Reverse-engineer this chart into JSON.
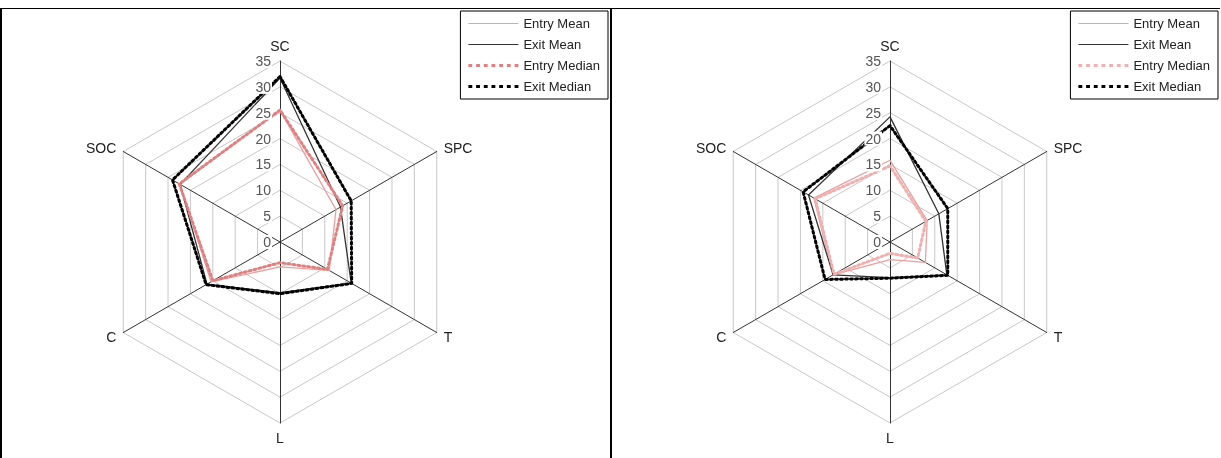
{
  "chart_data": [
    {
      "type": "radar",
      "categories": [
        "SC",
        "SPC",
        "T",
        "L",
        "C",
        "SOC"
      ],
      "ylim": [
        0,
        35
      ],
      "yticks": [
        0,
        5,
        10,
        15,
        20,
        25,
        30,
        35
      ],
      "legend": "top right",
      "marker": "none",
      "grid": true,
      "series": [
        {
          "name": "Entry Mean",
          "color": "#e8a0a0",
          "line_style": "solid",
          "values": [
            25.5,
            12.5,
            11,
            4.8,
            15.4,
            22.3
          ]
        },
        {
          "name": "Exit Mean",
          "color": "#333333",
          "line_style": "solid",
          "values": [
            31.7,
            13.5,
            15.9,
            9.8,
            16.3,
            22.3
          ]
        },
        {
          "name": "Entry Median",
          "color": "#e08080",
          "line_style": "dotted",
          "values": [
            25.5,
            14,
            10.6,
            4,
            15,
            22.5
          ]
        },
        {
          "name": "Exit Median",
          "color": "#000000",
          "line_style": "dotted",
          "values": [
            32,
            15.9,
            16,
            10,
            16.5,
            24
          ]
        }
      ]
    },
    {
      "type": "radar",
      "categories": [
        "SC",
        "SPC",
        "T",
        "L",
        "C",
        "SOC"
      ],
      "ylim": [
        0,
        35
      ],
      "yticks": [
        0,
        5,
        10,
        15,
        20,
        25,
        30,
        35
      ],
      "legend": "top right",
      "marker": "none",
      "grid": true,
      "series": [
        {
          "name": "Entry Mean",
          "color": "#e8a0a0",
          "line_style": "solid",
          "values": [
            15.8,
            8.3,
            7.9,
            3.4,
            12.7,
            17
          ]
        },
        {
          "name": "Exit Mean",
          "color": "#333333",
          "line_style": "solid",
          "values": [
            24.2,
            10.9,
            12.7,
            6.9,
            12.7,
            18.2
          ]
        },
        {
          "name": "Entry Median",
          "color": "#f0b0b0",
          "line_style": "dotted",
          "values": [
            14.7,
            8,
            6.2,
            2.2,
            12.5,
            16.7
          ]
        },
        {
          "name": "Exit Median",
          "color": "#000000",
          "line_style": "dotted",
          "values": [
            22.5,
            12.9,
            12.9,
            7,
            14.5,
            19.4
          ]
        }
      ]
    }
  ]
}
